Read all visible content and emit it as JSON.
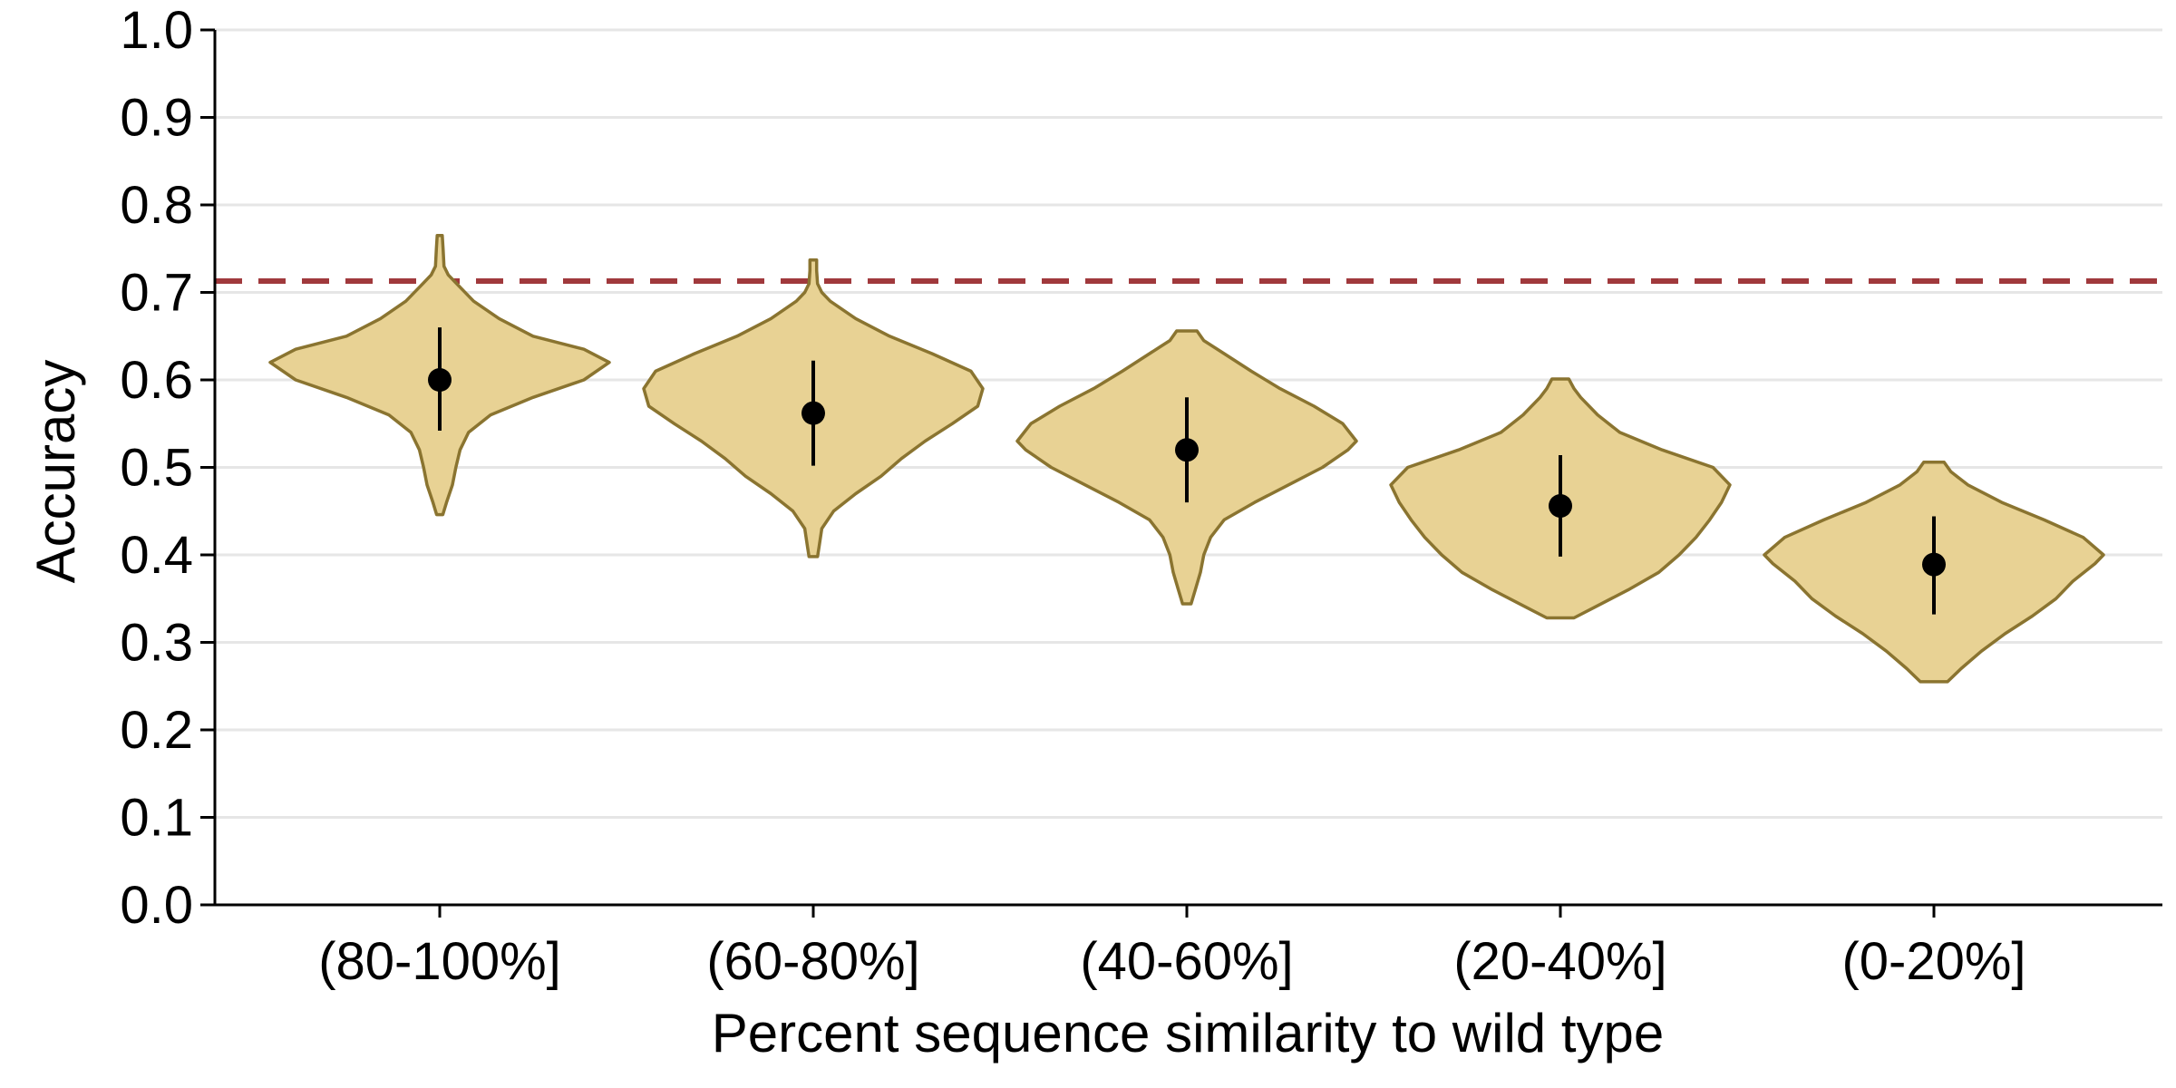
{
  "chart_data": {
    "type": "violin",
    "xlabel": "Percent sequence similarity to wild type",
    "ylabel": "Accuracy",
    "ylim": [
      0,
      1
    ],
    "yticks": [
      "0.0",
      "0.1",
      "0.2",
      "0.3",
      "0.4",
      "0.5",
      "0.6",
      "0.7",
      "0.8",
      "0.9",
      "1.0"
    ],
    "grid": "horizontal",
    "reference_line": {
      "y": 0.713,
      "style": "dashed",
      "color": "#a0393c"
    },
    "colors": {
      "fill": "#e8d294",
      "stroke": "#8a7430",
      "point": "#000000",
      "grid": "#e6e6e6"
    },
    "categories": [
      "(80-100%]",
      "(60-80%]",
      "(40-60%]",
      "(20-40%]",
      "(0-20%]"
    ],
    "violins": [
      {
        "category": "(80-100%]",
        "mean": 0.6,
        "err_low": 0.542,
        "err_high": 0.66,
        "min": 0.446,
        "max": 0.765,
        "profile": [
          [
            0.446,
            0.018
          ],
          [
            0.46,
            0.04
          ],
          [
            0.48,
            0.075
          ],
          [
            0.5,
            0.095
          ],
          [
            0.52,
            0.12
          ],
          [
            0.54,
            0.17
          ],
          [
            0.56,
            0.3
          ],
          [
            0.58,
            0.55
          ],
          [
            0.6,
            0.85
          ],
          [
            0.62,
            1.0
          ],
          [
            0.635,
            0.85
          ],
          [
            0.65,
            0.55
          ],
          [
            0.67,
            0.35
          ],
          [
            0.69,
            0.2
          ],
          [
            0.71,
            0.1
          ],
          [
            0.72,
            0.05
          ],
          [
            0.73,
            0.025
          ],
          [
            0.75,
            0.02
          ],
          [
            0.765,
            0.015
          ]
        ]
      },
      {
        "category": "(60-80%]",
        "mean": 0.562,
        "err_low": 0.502,
        "err_high": 0.622,
        "min": 0.398,
        "max": 0.737,
        "profile": [
          [
            0.398,
            0.025
          ],
          [
            0.41,
            0.035
          ],
          [
            0.43,
            0.05
          ],
          [
            0.45,
            0.12
          ],
          [
            0.47,
            0.25
          ],
          [
            0.49,
            0.4
          ],
          [
            0.51,
            0.52
          ],
          [
            0.53,
            0.66
          ],
          [
            0.55,
            0.82
          ],
          [
            0.57,
            0.97
          ],
          [
            0.59,
            1.0
          ],
          [
            0.61,
            0.93
          ],
          [
            0.63,
            0.7
          ],
          [
            0.65,
            0.45
          ],
          [
            0.67,
            0.25
          ],
          [
            0.69,
            0.1
          ],
          [
            0.7,
            0.05
          ],
          [
            0.71,
            0.025
          ],
          [
            0.725,
            0.02
          ],
          [
            0.737,
            0.02
          ]
        ]
      },
      {
        "category": "(40-60%]",
        "mean": 0.52,
        "err_low": 0.46,
        "err_high": 0.58,
        "min": 0.344,
        "max": 0.656,
        "profile": [
          [
            0.344,
            0.025
          ],
          [
            0.36,
            0.05
          ],
          [
            0.38,
            0.08
          ],
          [
            0.4,
            0.1
          ],
          [
            0.42,
            0.14
          ],
          [
            0.44,
            0.22
          ],
          [
            0.46,
            0.4
          ],
          [
            0.48,
            0.6
          ],
          [
            0.5,
            0.8
          ],
          [
            0.52,
            0.95
          ],
          [
            0.53,
            1.0
          ],
          [
            0.55,
            0.92
          ],
          [
            0.57,
            0.75
          ],
          [
            0.59,
            0.55
          ],
          [
            0.61,
            0.38
          ],
          [
            0.63,
            0.22
          ],
          [
            0.645,
            0.1
          ],
          [
            0.656,
            0.06
          ]
        ]
      },
      {
        "category": "(20-40%]",
        "mean": 0.456,
        "err_low": 0.398,
        "err_high": 0.514,
        "min": 0.328,
        "max": 0.601,
        "profile": [
          [
            0.328,
            0.08
          ],
          [
            0.34,
            0.2
          ],
          [
            0.36,
            0.4
          ],
          [
            0.38,
            0.58
          ],
          [
            0.4,
            0.7
          ],
          [
            0.42,
            0.8
          ],
          [
            0.44,
            0.88
          ],
          [
            0.46,
            0.95
          ],
          [
            0.48,
            1.0
          ],
          [
            0.5,
            0.9
          ],
          [
            0.52,
            0.6
          ],
          [
            0.54,
            0.35
          ],
          [
            0.56,
            0.22
          ],
          [
            0.58,
            0.12
          ],
          [
            0.59,
            0.08
          ],
          [
            0.601,
            0.05
          ]
        ]
      },
      {
        "category": "(0-20%]",
        "mean": 0.389,
        "err_low": 0.332,
        "err_high": 0.444,
        "min": 0.255,
        "max": 0.506,
        "profile": [
          [
            0.255,
            0.08
          ],
          [
            0.27,
            0.16
          ],
          [
            0.29,
            0.28
          ],
          [
            0.31,
            0.42
          ],
          [
            0.33,
            0.58
          ],
          [
            0.35,
            0.72
          ],
          [
            0.37,
            0.82
          ],
          [
            0.39,
            0.95
          ],
          [
            0.4,
            1.0
          ],
          [
            0.42,
            0.88
          ],
          [
            0.44,
            0.65
          ],
          [
            0.46,
            0.4
          ],
          [
            0.48,
            0.2
          ],
          [
            0.495,
            0.1
          ],
          [
            0.506,
            0.06
          ]
        ]
      }
    ]
  }
}
